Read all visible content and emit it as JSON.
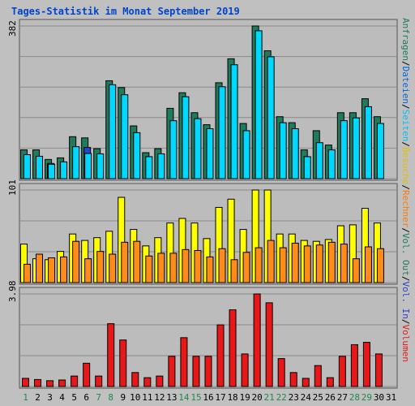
{
  "title": "Tages-Statistik im Monat September 2019",
  "colors": {
    "frame": "#c0c0c0",
    "plot_bg": "#bcbcbc",
    "grid": "#8a8a8a",
    "title": "#0044cc",
    "anfragen": "#1e7b5b",
    "dateien": "#00d8ff",
    "seiten": "#2a42cc",
    "besuche": "#ffff00",
    "rechner": "#ff8c1a",
    "volumen": "#e81818",
    "weekend_label": "#1e8a4a",
    "weekday_label": "#000000"
  },
  "legend_right": {
    "anfragen": "Anfragen",
    "dateien": "Dateien",
    "seiten": "Seiten",
    "besuche": "Besuche",
    "rechner": "Rechner",
    "vol_out": "Vol. Out",
    "vol_in": "Vol. In",
    "volumen": "Volumen",
    "sep": "/"
  },
  "chart_data": [
    {
      "type": "bar",
      "panel": "top",
      "ymax_label": "382",
      "ylim": [
        0,
        382
      ],
      "categories": [
        "1",
        "2",
        "3",
        "4",
        "5",
        "6",
        "7",
        "8",
        "9",
        "10",
        "11",
        "12",
        "13",
        "14",
        "15",
        "16",
        "17",
        "18",
        "19",
        "20",
        "21",
        "22",
        "23",
        "24",
        "25",
        "26",
        "27",
        "28",
        "29",
        "30"
      ],
      "series": [
        {
          "name": "Anfragen",
          "values": [
            72,
            72,
            48,
            52,
            105,
            102,
            75,
            245,
            228,
            132,
            65,
            75,
            176,
            215,
            165,
            135,
            240,
            300,
            138,
            382,
            320,
            155,
            140,
            72,
            120,
            84,
            165,
            165,
            200,
            155
          ]
        },
        {
          "name": "Dateien",
          "values": [
            60,
            56,
            36,
            42,
            80,
            63,
            62,
            235,
            210,
            115,
            55,
            62,
            145,
            205,
            150,
            125,
            230,
            285,
            120,
            370,
            305,
            140,
            125,
            55,
            90,
            72,
            145,
            152,
            180,
            138
          ]
        },
        {
          "name": "Seiten",
          "values": [
            0,
            0,
            38,
            0,
            0,
            78,
            0,
            0,
            0,
            0,
            0,
            0,
            0,
            0,
            0,
            0,
            0,
            0,
            0,
            0,
            0,
            0,
            0,
            0,
            0,
            0,
            0,
            0,
            0,
            0
          ]
        }
      ]
    },
    {
      "type": "bar",
      "panel": "middle",
      "ymax_label": "101",
      "ylim": [
        0,
        101
      ],
      "categories": [
        "1",
        "2",
        "3",
        "4",
        "5",
        "6",
        "7",
        "8",
        "9",
        "10",
        "11",
        "12",
        "13",
        "14",
        "15",
        "16",
        "17",
        "18",
        "19",
        "20",
        "21",
        "22",
        "23",
        "24",
        "25",
        "26",
        "27",
        "28",
        "29",
        "30"
      ],
      "series": [
        {
          "name": "Besuche",
          "values": [
            42,
            26,
            25,
            34,
            53,
            46,
            49,
            56,
            93,
            58,
            40,
            49,
            65,
            70,
            65,
            48,
            82,
            91,
            58,
            101,
            101,
            53,
            53,
            46,
            45,
            47,
            62,
            63,
            81,
            65
          ]
        },
        {
          "name": "Rechner",
          "values": [
            20,
            31,
            27,
            28,
            45,
            26,
            34,
            31,
            44,
            45,
            29,
            32,
            32,
            36,
            35,
            28,
            37,
            25,
            33,
            38,
            46,
            38,
            43,
            40,
            41,
            44,
            42,
            26,
            39,
            37
          ]
        }
      ]
    },
    {
      "type": "bar",
      "panel": "bottom",
      "ymax_label": "3.98",
      "ylim": [
        0,
        3.98
      ],
      "categories": [
        "1",
        "2",
        "3",
        "4",
        "5",
        "6",
        "7",
        "8",
        "9",
        "10",
        "11",
        "12",
        "13",
        "14",
        "15",
        "16",
        "17",
        "18",
        "19",
        "20",
        "21",
        "22",
        "23",
        "24",
        "25",
        "26",
        "27",
        "28",
        "29",
        "30"
      ],
      "series": [
        {
          "name": "Volumen",
          "values": [
            0.35,
            0.3,
            0.25,
            0.28,
            0.45,
            1.0,
            0.45,
            2.7,
            2.0,
            0.6,
            0.38,
            0.45,
            1.3,
            2.1,
            1.3,
            1.3,
            2.65,
            3.3,
            1.4,
            3.98,
            3.6,
            1.2,
            0.6,
            0.35,
            0.9,
            0.38,
            1.3,
            1.8,
            1.9,
            1.4
          ]
        }
      ]
    }
  ],
  "day_labels": {
    "days": [
      "1",
      "2",
      "3",
      "4",
      "5",
      "6",
      "7",
      "8",
      "9",
      "10",
      "11",
      "12",
      "13",
      "14",
      "15",
      "16",
      "17",
      "18",
      "19",
      "20",
      "21",
      "22",
      "23",
      "24",
      "25",
      "26",
      "27",
      "28",
      "29",
      "30",
      "31"
    ],
    "weekend": [
      "1",
      "7",
      "8",
      "14",
      "15",
      "21",
      "22",
      "28",
      "29"
    ]
  }
}
